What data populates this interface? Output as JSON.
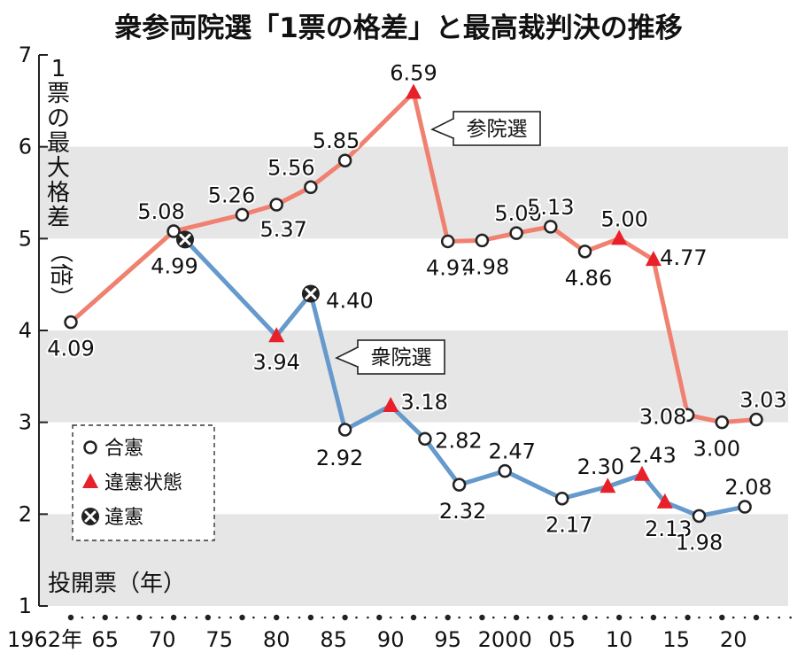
{
  "title": "衆参両院選「1票の格差」と最高裁判決の推移",
  "chart_data": {
    "type": "line",
    "title": "衆参両院選「1票の格差」と最高裁判決の推移",
    "xlabel": "投開票（年）",
    "ylabel": "1票の最大格差（倍）",
    "ylim": [
      1,
      7
    ],
    "xlim": [
      1962,
      2025
    ],
    "y_ticks": [
      "1",
      "2",
      "3",
      "4",
      "5",
      "6",
      "7"
    ],
    "x_tick_labels": [
      {
        "year": 1962,
        "label": "1962年"
      },
      {
        "year": 1965,
        "label": "65"
      },
      {
        "year": 1970,
        "label": "70"
      },
      {
        "year": 1975,
        "label": "75"
      },
      {
        "year": 1980,
        "label": "80"
      },
      {
        "year": 1985,
        "label": "85"
      },
      {
        "year": 1990,
        "label": "90"
      },
      {
        "year": 1995,
        "label": "95"
      },
      {
        "year": 2000,
        "label": "2000"
      },
      {
        "year": 2005,
        "label": "05"
      },
      {
        "year": 2010,
        "label": "10"
      },
      {
        "year": 2015,
        "label": "15"
      },
      {
        "year": 2020,
        "label": "20"
      }
    ],
    "dot_years": [
      1962,
      1965,
      1968,
      1971,
      1974,
      1977,
      1980,
      1983,
      1986,
      1989,
      1992,
      1995,
      1998,
      2001,
      2004,
      2007,
      2010,
      2013,
      2016,
      2019,
      2022
    ],
    "legend": [
      {
        "marker": "circle",
        "label": "合憲"
      },
      {
        "marker": "triangle",
        "label": "違憲状態"
      },
      {
        "marker": "cross",
        "label": "違憲"
      }
    ],
    "series": [
      {
        "name": "参院選",
        "color": "#f08070",
        "points": [
          {
            "x": 1962,
            "y": 4.09,
            "label": "4.09",
            "marker": "circle"
          },
          {
            "x": 1971,
            "y": 5.08,
            "label": "5.08",
            "marker": "circle"
          },
          {
            "x": 1977,
            "y": 5.26,
            "label": "5.26",
            "marker": "circle"
          },
          {
            "x": 1980,
            "y": 5.37,
            "label": "5.37",
            "marker": "circle"
          },
          {
            "x": 1983,
            "y": 5.56,
            "label": "5.56",
            "marker": "circle"
          },
          {
            "x": 1986,
            "y": 5.85,
            "label": "5.85",
            "marker": "circle"
          },
          {
            "x": 1992,
            "y": 6.59,
            "label": "6.59",
            "marker": "triangle"
          },
          {
            "x": 1995,
            "y": 4.97,
            "label": "4.97",
            "marker": "circle"
          },
          {
            "x": 1998,
            "y": 4.98,
            "label": "4.98",
            "marker": "circle"
          },
          {
            "x": 2001,
            "y": 5.06,
            "label": "5.06",
            "marker": "circle"
          },
          {
            "x": 2004,
            "y": 5.13,
            "label": "5.13",
            "marker": "circle"
          },
          {
            "x": 2007,
            "y": 4.86,
            "label": "4.86",
            "marker": "circle"
          },
          {
            "x": 2010,
            "y": 5.0,
            "label": "5.00",
            "marker": "triangle"
          },
          {
            "x": 2013,
            "y": 4.77,
            "label": "4.77",
            "marker": "triangle"
          },
          {
            "x": 2016,
            "y": 3.08,
            "label": "3.08",
            "marker": "circle"
          },
          {
            "x": 2019,
            "y": 3.0,
            "label": "3.00",
            "marker": "circle"
          },
          {
            "x": 2022,
            "y": 3.03,
            "label": "3.03",
            "marker": "circle"
          }
        ]
      },
      {
        "name": "衆院選",
        "color": "#6699cc",
        "points": [
          {
            "x": 1972,
            "y": 4.99,
            "label": "4.99",
            "marker": "cross"
          },
          {
            "x": 1980,
            "y": 3.94,
            "label": "3.94",
            "marker": "triangle"
          },
          {
            "x": 1983,
            "y": 4.4,
            "label": "4.40",
            "marker": "cross"
          },
          {
            "x": 1986,
            "y": 2.92,
            "label": "2.92",
            "marker": "circle"
          },
          {
            "x": 1990,
            "y": 3.18,
            "label": "3.18",
            "marker": "triangle"
          },
          {
            "x": 1993,
            "y": 2.82,
            "label": "2.82",
            "marker": "circle"
          },
          {
            "x": 1996,
            "y": 2.32,
            "label": "2.32",
            "marker": "circle"
          },
          {
            "x": 2000,
            "y": 2.47,
            "label": "2.47",
            "marker": "circle"
          },
          {
            "x": 2005,
            "y": 2.17,
            "label": "2.17",
            "marker": "circle"
          },
          {
            "x": 2009,
            "y": 2.3,
            "label": "2.30",
            "marker": "triangle"
          },
          {
            "x": 2012,
            "y": 2.43,
            "label": "2.43",
            "marker": "triangle"
          },
          {
            "x": 2014,
            "y": 2.13,
            "label": "2.13",
            "marker": "triangle"
          },
          {
            "x": 2017,
            "y": 1.98,
            "label": "1.98",
            "marker": "circle"
          },
          {
            "x": 2021,
            "y": 2.08,
            "label": "2.08",
            "marker": "circle"
          }
        ]
      }
    ]
  }
}
